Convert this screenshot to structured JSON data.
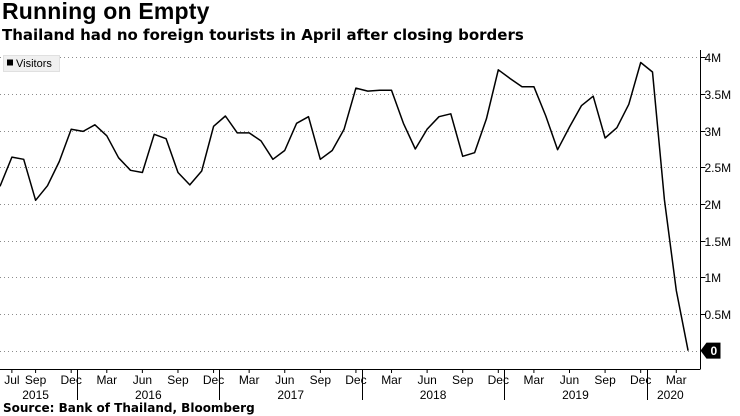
{
  "title": "Running on Empty",
  "subtitle": "Thailand had no foreign tourists in April after closing borders",
  "source": "Source: Bank of Thailand, Bloomberg",
  "chart_data": {
    "type": "line",
    "legend": {
      "label": "Visitors",
      "placement": "top-left"
    },
    "series": [
      {
        "name": "Visitors",
        "color": "#000000",
        "points": [
          [
            "2015-06",
            2.24
          ],
          [
            "2015-07",
            2.64
          ],
          [
            "2015-08",
            2.61
          ],
          [
            "2015-09",
            2.05
          ],
          [
            "2015-10",
            2.25
          ],
          [
            "2015-11",
            2.58
          ],
          [
            "2015-12",
            3.02
          ],
          [
            "2016-01",
            2.99
          ],
          [
            "2016-02",
            3.08
          ],
          [
            "2016-03",
            2.93
          ],
          [
            "2016-04",
            2.63
          ],
          [
            "2016-05",
            2.46
          ],
          [
            "2016-06",
            2.43
          ],
          [
            "2016-07",
            2.95
          ],
          [
            "2016-08",
            2.89
          ],
          [
            "2016-09",
            2.43
          ],
          [
            "2016-10",
            2.26
          ],
          [
            "2016-11",
            2.45
          ],
          [
            "2016-12",
            3.06
          ],
          [
            "2017-01",
            3.2
          ],
          [
            "2017-02",
            2.97
          ],
          [
            "2017-03",
            2.97
          ],
          [
            "2017-04",
            2.86
          ],
          [
            "2017-05",
            2.61
          ],
          [
            "2017-06",
            2.73
          ],
          [
            "2017-07",
            3.1
          ],
          [
            "2017-08",
            3.19
          ],
          [
            "2017-09",
            2.61
          ],
          [
            "2017-10",
            2.73
          ],
          [
            "2017-11",
            3.02
          ],
          [
            "2017-12",
            3.58
          ],
          [
            "2018-01",
            3.54
          ],
          [
            "2018-02",
            3.55
          ],
          [
            "2018-03",
            3.55
          ],
          [
            "2018-04",
            3.1
          ],
          [
            "2018-05",
            2.75
          ],
          [
            "2018-06",
            3.02
          ],
          [
            "2018-07",
            3.19
          ],
          [
            "2018-08",
            3.23
          ],
          [
            "2018-09",
            2.65
          ],
          [
            "2018-10",
            2.7
          ],
          [
            "2018-11",
            3.16
          ],
          [
            "2018-12",
            3.83
          ],
          [
            "2019-01",
            3.71
          ],
          [
            "2019-02",
            3.6
          ],
          [
            "2019-03",
            3.6
          ],
          [
            "2019-04",
            3.2
          ],
          [
            "2019-05",
            2.74
          ],
          [
            "2019-06",
            3.05
          ],
          [
            "2019-07",
            3.34
          ],
          [
            "2019-08",
            3.47
          ],
          [
            "2019-09",
            2.9
          ],
          [
            "2019-10",
            3.04
          ],
          [
            "2019-11",
            3.36
          ],
          [
            "2019-12",
            3.93
          ],
          [
            "2020-01",
            3.8
          ],
          [
            "2020-02",
            2.06
          ],
          [
            "2020-03",
            0.82
          ],
          [
            "2020-04",
            0.0
          ]
        ]
      }
    ],
    "x_range": [
      "2015-06",
      "2020-05"
    ],
    "month_tick_labels": [
      [
        "2015-07",
        "Jul"
      ],
      [
        "2015-09",
        "Sep"
      ],
      [
        "2015-12",
        "Dec"
      ],
      [
        "2016-03",
        "Mar"
      ],
      [
        "2016-06",
        "Jun"
      ],
      [
        "2016-09",
        "Sep"
      ],
      [
        "2016-12",
        "Dec"
      ],
      [
        "2017-03",
        "Mar"
      ],
      [
        "2017-06",
        "Jun"
      ],
      [
        "2017-09",
        "Sep"
      ],
      [
        "2017-12",
        "Dec"
      ],
      [
        "2018-03",
        "Mar"
      ],
      [
        "2018-06",
        "Jun"
      ],
      [
        "2018-09",
        "Sep"
      ],
      [
        "2018-12",
        "Dec"
      ],
      [
        "2019-03",
        "Mar"
      ],
      [
        "2019-06",
        "Jun"
      ],
      [
        "2019-09",
        "Sep"
      ],
      [
        "2019-12",
        "Dec"
      ],
      [
        "2020-03",
        "Mar"
      ]
    ],
    "year_labels": [
      [
        "2015",
        "2015"
      ],
      [
        "2016",
        "2016"
      ],
      [
        "2017",
        "2017"
      ],
      [
        "2018",
        "2018"
      ],
      [
        "2019",
        "2019"
      ],
      [
        "2020",
        "2020"
      ]
    ],
    "year_boundaries": [
      "2016-01",
      "2017-01",
      "2018-01",
      "2019-01",
      "2020-01"
    ],
    "y_axis": {
      "side": "right",
      "ylim": [
        -0.25,
        4.1
      ],
      "ticks": [
        0.5,
        1.0,
        1.5,
        2.0,
        2.5,
        3.0,
        3.5,
        4.0
      ],
      "tick_labels": [
        "0.5M",
        "1M",
        "1.5M",
        "2M",
        "2.5M",
        "3M",
        "3.5M",
        "4M"
      ],
      "unit": "M"
    },
    "last_value_label": {
      "value": 0,
      "text": "0"
    },
    "grid": {
      "horizontal": true,
      "vertical": false,
      "style": "dotted"
    }
  }
}
